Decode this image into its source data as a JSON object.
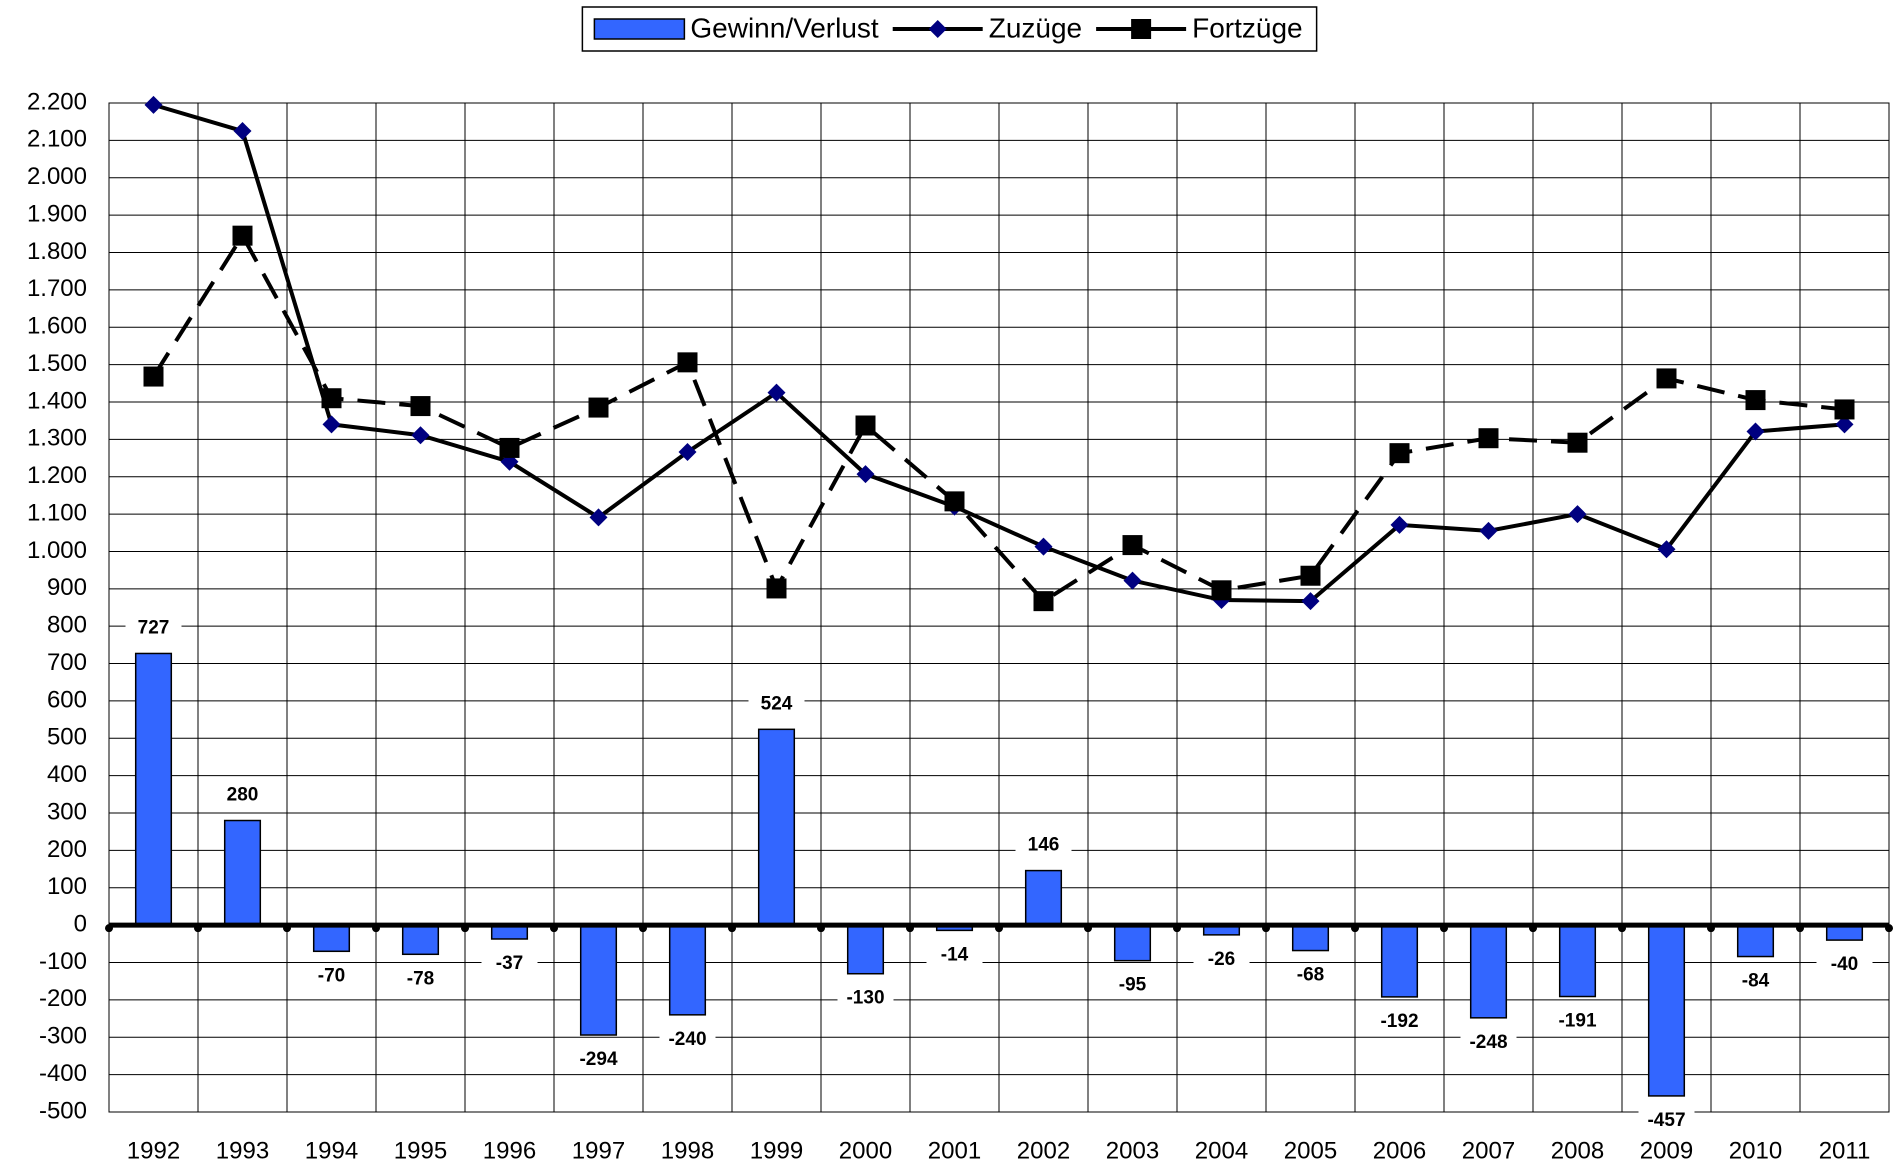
{
  "chart_data": {
    "type": "bar",
    "categories": [
      "1992",
      "1993",
      "1994",
      "1995",
      "1996",
      "1997",
      "1998",
      "1999",
      "2000",
      "2001",
      "2002",
      "2003",
      "2004",
      "2005",
      "2006",
      "2007",
      "2008",
      "2009",
      "2010",
      "2011"
    ],
    "series": [
      {
        "name": "Gewinn/Verlust",
        "type": "bar",
        "color": "#3366ff",
        "values": [
          727,
          280,
          -70,
          -78,
          -37,
          -294,
          -240,
          524,
          -130,
          -14,
          146,
          -95,
          -26,
          -68,
          -192,
          -248,
          -191,
          -457,
          -84,
          -40
        ]
      },
      {
        "name": "Zuzüge",
        "type": "line",
        "color": "#000000",
        "marker": "diamond",
        "marker_color": "#000080",
        "dashed": false,
        "values": [
          2195,
          2125,
          1340,
          1311,
          1240,
          1091,
          1266,
          1425,
          1207,
          1120,
          1013,
          922,
          870,
          867,
          1071,
          1055,
          1100,
          1006,
          1321,
          1340
        ]
      },
      {
        "name": "Fortzüge",
        "type": "line",
        "color": "#000000",
        "marker": "square",
        "marker_color": "#000000",
        "dashed": true,
        "values": [
          1468,
          1845,
          1410,
          1389,
          1277,
          1385,
          1506,
          901,
          1337,
          1134,
          867,
          1017,
          896,
          935,
          1263,
          1303,
          1291,
          1463,
          1405,
          1380
        ]
      }
    ],
    "ylim": [
      -500,
      2200
    ],
    "yticks": [
      -500,
      -400,
      -300,
      -200,
      -100,
      0,
      100,
      200,
      300,
      400,
      500,
      600,
      700,
      800,
      900,
      {
        "value": 1000,
        "label": "1.000"
      },
      {
        "value": 1100,
        "label": "1.100"
      },
      {
        "value": 1200,
        "label": "1.200"
      },
      {
        "value": 1300,
        "label": "1.300"
      },
      {
        "value": 1400,
        "label": "1.400"
      },
      {
        "value": 1500,
        "label": "1.500"
      },
      {
        "value": 1600,
        "label": "1.600"
      },
      {
        "value": 1700,
        "label": "1.700"
      },
      {
        "value": 1800,
        "label": "1.800"
      },
      {
        "value": 1900,
        "label": "1.900"
      },
      {
        "value": 2000,
        "label": "2.000"
      },
      {
        "value": 2100,
        "label": "2.100"
      },
      {
        "value": 2200,
        "label": "2.200"
      }
    ],
    "grid": true,
    "legend": "top"
  }
}
